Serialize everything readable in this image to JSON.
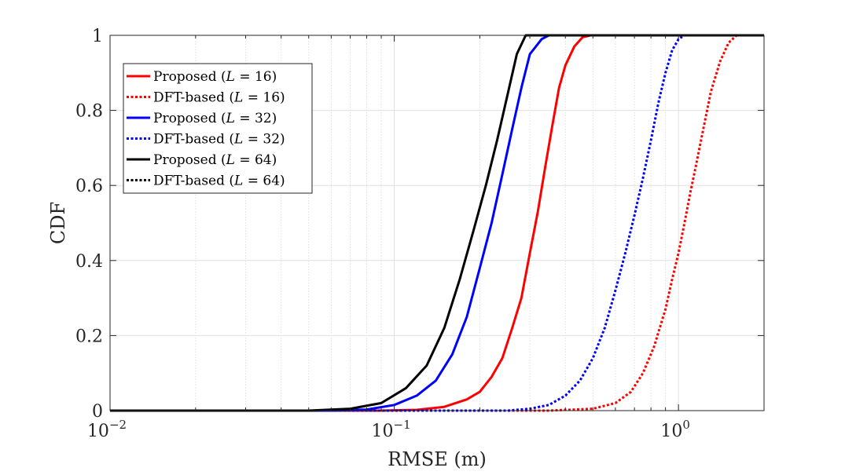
{
  "chart_data": {
    "type": "line",
    "title": "",
    "xlabel": "RMSE (m)",
    "ylabel": "CDF",
    "xscale": "log",
    "xlim": [
      0.01,
      2
    ],
    "ylim": [
      0,
      1
    ],
    "grid": true,
    "legend_position": "top-left",
    "x_ticks": [
      {
        "value": 0.01,
        "base": "10",
        "exp": "−2"
      },
      {
        "value": 0.1,
        "base": "10",
        "exp": "−1"
      },
      {
        "value": 1,
        "base": "10",
        "exp": "0"
      }
    ],
    "y_ticks": [
      {
        "value": 0,
        "label": "0"
      },
      {
        "value": 0.2,
        "label": "0.2"
      },
      {
        "value": 0.4,
        "label": "0.4"
      },
      {
        "value": 0.6,
        "label": "0.6"
      },
      {
        "value": 0.8,
        "label": "0.8"
      },
      {
        "value": 1,
        "label": "1"
      }
    ],
    "series": [
      {
        "name_prefix": "Proposed (",
        "L_symbol": "L",
        "name_suffix": " = 16)",
        "color": "#ff0000",
        "dash": "solid",
        "points": [
          [
            0.01,
            0
          ],
          [
            0.09,
            0
          ],
          [
            0.12,
            0.002
          ],
          [
            0.15,
            0.01
          ],
          [
            0.18,
            0.03
          ],
          [
            0.2,
            0.05
          ],
          [
            0.22,
            0.09
          ],
          [
            0.24,
            0.14
          ],
          [
            0.26,
            0.22
          ],
          [
            0.28,
            0.3
          ],
          [
            0.3,
            0.42
          ],
          [
            0.32,
            0.53
          ],
          [
            0.34,
            0.65
          ],
          [
            0.36,
            0.76
          ],
          [
            0.38,
            0.86
          ],
          [
            0.4,
            0.92
          ],
          [
            0.43,
            0.97
          ],
          [
            0.46,
            0.995
          ],
          [
            0.49,
            1
          ],
          [
            2,
            1
          ]
        ]
      },
      {
        "name_prefix": "DFT-based (",
        "L_symbol": "L",
        "name_suffix": " = 16)",
        "color": "#ff0000",
        "dash": "dotted",
        "points": [
          [
            0.01,
            0
          ],
          [
            0.35,
            0
          ],
          [
            0.5,
            0.005
          ],
          [
            0.6,
            0.02
          ],
          [
            0.68,
            0.05
          ],
          [
            0.75,
            0.1
          ],
          [
            0.82,
            0.17
          ],
          [
            0.9,
            0.27
          ],
          [
            0.95,
            0.35
          ],
          [
            1.0,
            0.42
          ],
          [
            1.05,
            0.5
          ],
          [
            1.1,
            0.58
          ],
          [
            1.15,
            0.65
          ],
          [
            1.2,
            0.72
          ],
          [
            1.3,
            0.85
          ],
          [
            1.4,
            0.93
          ],
          [
            1.5,
            0.98
          ],
          [
            1.6,
            1
          ],
          [
            2,
            1
          ]
        ]
      },
      {
        "name_prefix": "Proposed (",
        "L_symbol": "L",
        "name_suffix": " = 32)",
        "color": "#0000ff",
        "dash": "solid",
        "points": [
          [
            0.01,
            0
          ],
          [
            0.06,
            0
          ],
          [
            0.08,
            0.003
          ],
          [
            0.1,
            0.015
          ],
          [
            0.12,
            0.04
          ],
          [
            0.14,
            0.08
          ],
          [
            0.16,
            0.15
          ],
          [
            0.18,
            0.25
          ],
          [
            0.2,
            0.38
          ],
          [
            0.22,
            0.5
          ],
          [
            0.24,
            0.63
          ],
          [
            0.26,
            0.75
          ],
          [
            0.28,
            0.86
          ],
          [
            0.3,
            0.95
          ],
          [
            0.33,
            0.99
          ],
          [
            0.35,
            1
          ],
          [
            2,
            1
          ]
        ]
      },
      {
        "name_prefix": "DFT-based (",
        "L_symbol": "L",
        "name_suffix": " = 32)",
        "color": "#0000ff",
        "dash": "dotted",
        "points": [
          [
            0.01,
            0
          ],
          [
            0.25,
            0
          ],
          [
            0.3,
            0.005
          ],
          [
            0.35,
            0.015
          ],
          [
            0.4,
            0.04
          ],
          [
            0.45,
            0.08
          ],
          [
            0.5,
            0.14
          ],
          [
            0.55,
            0.22
          ],
          [
            0.6,
            0.32
          ],
          [
            0.65,
            0.42
          ],
          [
            0.7,
            0.52
          ],
          [
            0.75,
            0.62
          ],
          [
            0.8,
            0.72
          ],
          [
            0.85,
            0.82
          ],
          [
            0.9,
            0.9
          ],
          [
            0.95,
            0.96
          ],
          [
            1.0,
            0.99
          ],
          [
            1.05,
            1
          ],
          [
            2,
            1
          ]
        ]
      },
      {
        "name_prefix": "Proposed (",
        "L_symbol": "L",
        "name_suffix": " = 64)",
        "color": "#000000",
        "dash": "solid",
        "points": [
          [
            0.01,
            0
          ],
          [
            0.05,
            0
          ],
          [
            0.07,
            0.005
          ],
          [
            0.09,
            0.02
          ],
          [
            0.11,
            0.06
          ],
          [
            0.13,
            0.12
          ],
          [
            0.15,
            0.22
          ],
          [
            0.17,
            0.35
          ],
          [
            0.19,
            0.48
          ],
          [
            0.21,
            0.6
          ],
          [
            0.23,
            0.72
          ],
          [
            0.25,
            0.84
          ],
          [
            0.27,
            0.95
          ],
          [
            0.29,
            1
          ],
          [
            2,
            1
          ]
        ]
      },
      {
        "name_prefix": "DFT-based (",
        "L_symbol": "L",
        "name_suffix": " = 64)",
        "color": "#000000",
        "dash": "dotted",
        "points": []
      }
    ]
  }
}
